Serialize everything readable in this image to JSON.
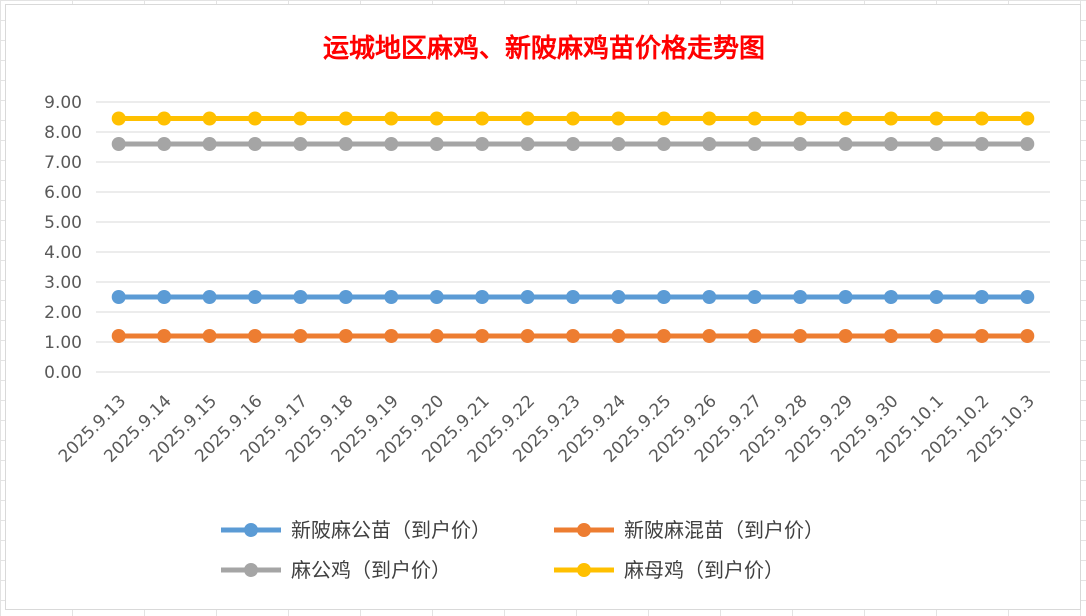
{
  "chart_data": {
    "type": "line",
    "title": "运城地区麻鸡、新陂麻鸡苗价格走势图",
    "xlabel": "",
    "ylabel": "",
    "ylim": [
      0,
      9
    ],
    "ytick_step": 1,
    "ytick_labels": [
      "0.00",
      "1.00",
      "2.00",
      "3.00",
      "4.00",
      "5.00",
      "6.00",
      "7.00",
      "8.00",
      "9.00"
    ],
    "categories": [
      "2025.9.13",
      "2025.9.14",
      "2025.9.15",
      "2025.9.16",
      "2025.9.17",
      "2025.9.18",
      "2025.9.19",
      "2025.9.20",
      "2025.9.21",
      "2025.9.22",
      "2025.9.23",
      "2025.9.24",
      "2025.9.25",
      "2025.9.26",
      "2025.9.27",
      "2025.9.28",
      "2025.9.29",
      "2025.9.30",
      "2025.10.1",
      "2025.10.2",
      "2025.10.3"
    ],
    "series": [
      {
        "name": "新陂麻公苗（到户价）",
        "color": "#5b9bd5",
        "values": [
          2.5,
          2.5,
          2.5,
          2.5,
          2.5,
          2.5,
          2.5,
          2.5,
          2.5,
          2.5,
          2.5,
          2.5,
          2.5,
          2.5,
          2.5,
          2.5,
          2.5,
          2.5,
          2.5,
          2.5,
          2.5
        ]
      },
      {
        "name": "新陂麻混苗（到户价）",
        "color": "#ed7d31",
        "values": [
          1.2,
          1.2,
          1.2,
          1.2,
          1.2,
          1.2,
          1.2,
          1.2,
          1.2,
          1.2,
          1.2,
          1.2,
          1.2,
          1.2,
          1.2,
          1.2,
          1.2,
          1.2,
          1.2,
          1.2,
          1.2
        ]
      },
      {
        "name": "麻公鸡（到户价）",
        "color": "#a5a5a5",
        "values": [
          7.6,
          7.6,
          7.6,
          7.6,
          7.6,
          7.6,
          7.6,
          7.6,
          7.6,
          7.6,
          7.6,
          7.6,
          7.6,
          7.6,
          7.6,
          7.6,
          7.6,
          7.6,
          7.6,
          7.6,
          7.6
        ]
      },
      {
        "name": "麻母鸡（到户价）",
        "color": "#ffc000",
        "values": [
          8.45,
          8.45,
          8.45,
          8.45,
          8.45,
          8.45,
          8.45,
          8.45,
          8.45,
          8.45,
          8.45,
          8.45,
          8.45,
          8.45,
          8.45,
          8.45,
          8.45,
          8.45,
          8.45,
          8.45,
          8.45
        ]
      }
    ],
    "grid": true,
    "legend_position": "bottom"
  }
}
